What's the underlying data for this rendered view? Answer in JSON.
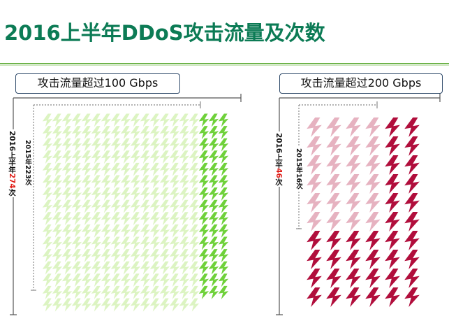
{
  "title": "2016上半年DDoS攻击流量及次数",
  "left_panel": {
    "label": "攻击流量超过100 Gbps",
    "outer_caption_prefix": "2016上半年",
    "outer_caption_num": "274",
    "outer_caption_suffix": "次",
    "inner_caption": "2015年223次",
    "bolt_color_light": "#dcf4c2",
    "bolt_color_dark": "#6fd13a"
  },
  "right_panel": {
    "label": "攻击流量超过200 Gbps",
    "outer_caption_prefix": "2016上半",
    "outer_caption_num": "46",
    "outer_caption_suffix": "次",
    "inner_caption": "2015年16次",
    "bolt_color_light": "#e6b2c0",
    "bolt_color_dark": "#b10e3c"
  }
}
